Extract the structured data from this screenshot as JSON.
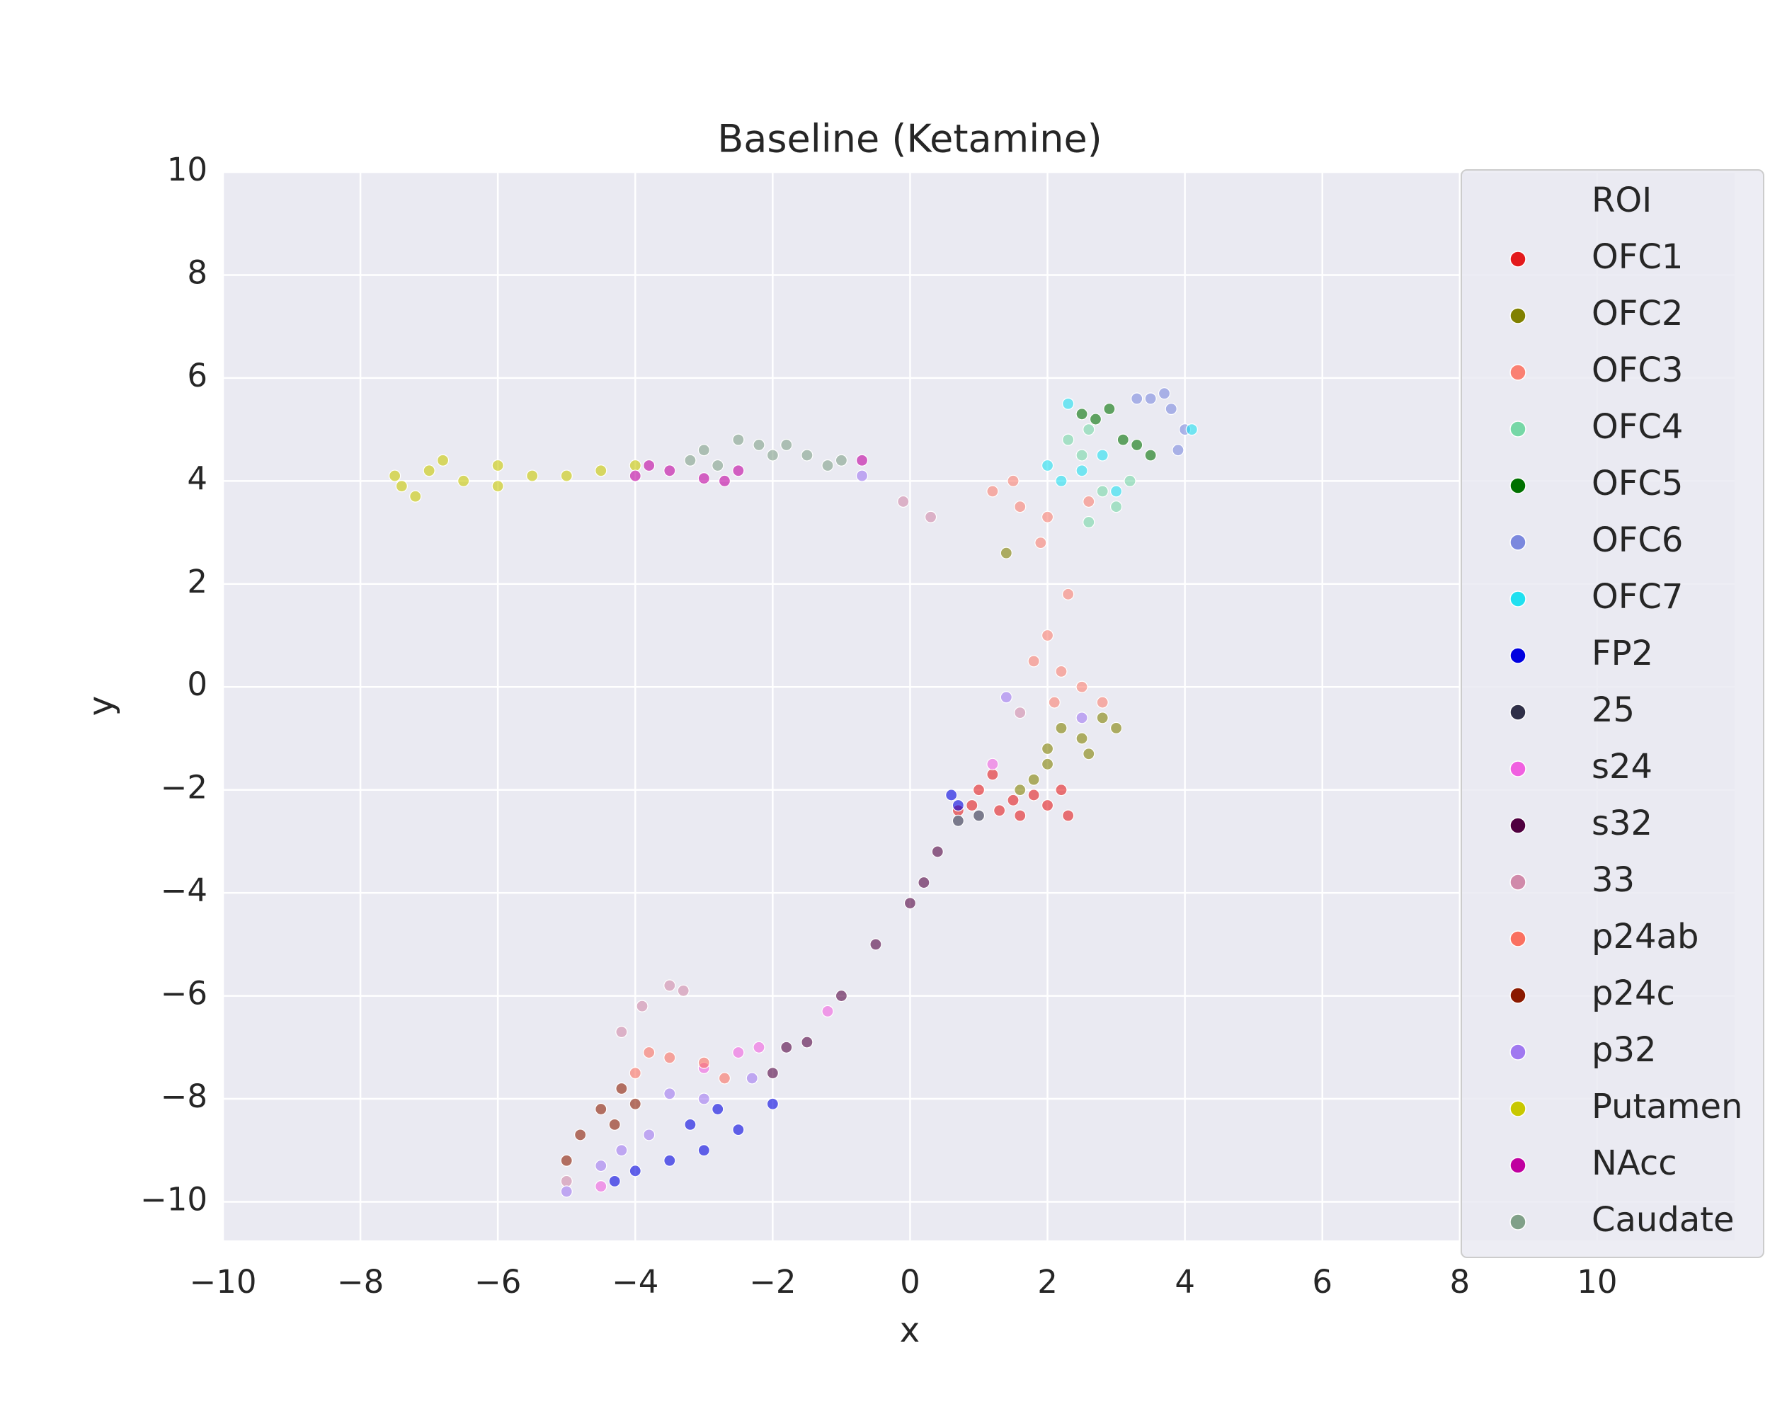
{
  "chart_data": {
    "type": "scatter",
    "title": "Baseline (Ketamine)",
    "x_label": "x",
    "y_label": "y",
    "legend_title": "ROI",
    "legend_position": "right",
    "grid": true,
    "xlim": [
      -10,
      12
    ],
    "ylim": [
      -10.75,
      10
    ],
    "xticks": [
      {
        "value": -10,
        "label": "−10"
      },
      {
        "value": -8,
        "label": "−8"
      },
      {
        "value": -6,
        "label": "−6"
      },
      {
        "value": -4,
        "label": "−4"
      },
      {
        "value": -2,
        "label": "−2"
      },
      0,
      2,
      4,
      6,
      8,
      10
    ],
    "yticks": [
      {
        "value": -10,
        "label": "−10"
      },
      {
        "value": -8,
        "label": "−8"
      },
      {
        "value": -6,
        "label": "−6"
      },
      {
        "value": -4,
        "label": "−4"
      },
      {
        "value": -2,
        "label": "−2"
      },
      0,
      2,
      4,
      6,
      8,
      10
    ],
    "series": [
      {
        "name": "OFC1",
        "color": "#e31a1c",
        "x": [
          1.5,
          2,
          1,
          2.3,
          1.8,
          1.2,
          0.9,
          2.2,
          1.6,
          1.3,
          0.7
        ],
        "y": [
          -2.2,
          -2.3,
          -2,
          -2.5,
          -2.1,
          -1.7,
          -2.3,
          -2,
          -2.5,
          -2.4,
          -2.4
        ]
      },
      {
        "name": "OFC2",
        "color": "#808000",
        "x": [
          2,
          2.5,
          1.8,
          2.8,
          2.2,
          1.6,
          2.6,
          2,
          3,
          1.4
        ],
        "y": [
          -1.5,
          -1,
          -1.8,
          -0.6,
          -0.8,
          -2,
          -1.3,
          -1.2,
          -0.8,
          2.6
        ]
      },
      {
        "name": "OFC3",
        "color": "#fa8072",
        "x": [
          2,
          2.2,
          1.9,
          2,
          1.5,
          1.2,
          2.5,
          2.8,
          2.3,
          1.8,
          2.1,
          1.6,
          2.6
        ],
        "y": [
          1,
          0.3,
          2.8,
          3.3,
          4,
          3.8,
          0,
          -0.3,
          1.8,
          0.5,
          -0.3,
          3.5,
          3.6
        ]
      },
      {
        "name": "OFC4",
        "color": "#76d7a6",
        "x": [
          2.5,
          2.8,
          2.6,
          3,
          2.3,
          3.2,
          2.6
        ],
        "y": [
          4.5,
          3.8,
          5,
          3.5,
          4.8,
          4,
          3.2
        ]
      },
      {
        "name": "OFC5",
        "color": "#007000",
        "x": [
          2.5,
          2.9,
          3.3,
          3.5,
          2.7,
          3.1
        ],
        "y": [
          5.3,
          5.4,
          4.7,
          4.5,
          5.2,
          4.8
        ]
      },
      {
        "name": "OFC6",
        "color": "#7b88de",
        "x": [
          3.5,
          3.8,
          4,
          3.7,
          3.3,
          3.9
        ],
        "y": [
          5.6,
          5.4,
          5,
          5.7,
          5.6,
          4.6
        ]
      },
      {
        "name": "OFC7",
        "color": "#20e0f0",
        "x": [
          2.5,
          2,
          3,
          2.3,
          4.1,
          2.2,
          2.8
        ],
        "y": [
          4.2,
          4.3,
          3.8,
          5.5,
          5,
          4,
          4.5
        ]
      },
      {
        "name": "FP2",
        "color": "#0000e0",
        "x": [
          -4,
          -3,
          -2.5,
          -2,
          -3.5,
          -3.2,
          -2.8,
          -4.3,
          0.7,
          0.6
        ],
        "y": [
          -9.4,
          -9,
          -8.6,
          -8.1,
          -9.2,
          -8.5,
          -8.2,
          -9.6,
          -2.3,
          -2.1
        ]
      },
      {
        "name": "25",
        "color": "#2f2f48",
        "x": [
          0.7,
          1
        ],
        "y": [
          -2.6,
          -2.5
        ]
      },
      {
        "name": "s24",
        "color": "#f060e0",
        "x": [
          -3,
          -2.5,
          -2.2,
          -1.2,
          -4.5,
          1.2
        ],
        "y": [
          -7.4,
          -7.1,
          -7,
          -6.3,
          -9.7,
          -1.5
        ]
      },
      {
        "name": "s32",
        "color": "#500040",
        "x": [
          -2,
          -1.5,
          -1,
          -0.5,
          0.2,
          0,
          0.4,
          -1.8
        ],
        "y": [
          -7.5,
          -6.9,
          -6,
          -5,
          -3.8,
          -4.2,
          -3.2,
          -7
        ]
      },
      {
        "name": "33",
        "color": "#d08aaa",
        "x": [
          -3.5,
          -3.9,
          -3.3,
          -4.2,
          1.6,
          -0.1,
          0.3,
          -5
        ],
        "y": [
          -5.8,
          -6.2,
          -5.9,
          -6.7,
          -0.5,
          3.6,
          3.3,
          -9.6
        ]
      },
      {
        "name": "p24ab",
        "color": "#fa7060",
        "x": [
          -3.5,
          -3,
          -4,
          -2.7,
          -3.8
        ],
        "y": [
          -7.2,
          -7.3,
          -7.5,
          -7.6,
          -7.1
        ]
      },
      {
        "name": "p24c",
        "color": "#8b1a00",
        "x": [
          -4.5,
          -4.2,
          -4.8,
          -4.3,
          -5,
          -4
        ],
        "y": [
          -8.2,
          -7.8,
          -8.7,
          -8.5,
          -9.2,
          -8.1
        ]
      },
      {
        "name": "p32",
        "color": "#a078f0",
        "x": [
          -4.5,
          -3.8,
          -3,
          -2.3,
          -5,
          -4.2,
          -3.5,
          1.4,
          -0.7,
          2.5
        ],
        "y": [
          -9.3,
          -8.7,
          -8,
          -7.6,
          -9.8,
          -9,
          -7.9,
          -0.2,
          4.1,
          -0.6
        ]
      },
      {
        "name": "Putamen",
        "color": "#c8c800",
        "x": [
          -7.5,
          -7,
          -6.5,
          -6,
          -5.5,
          -5,
          -4.5,
          -7.2,
          -6.8,
          -6,
          -4,
          -7.4
        ],
        "y": [
          4.1,
          4.2,
          4,
          3.9,
          4.1,
          4.1,
          4.2,
          3.7,
          4.4,
          4.3,
          4.3,
          3.9
        ]
      },
      {
        "name": "NAcc",
        "color": "#c000a0",
        "x": [
          -4,
          -3.5,
          -3,
          -2.5,
          -3.8,
          -2.7,
          -0.7
        ],
        "y": [
          4.1,
          4.2,
          4.05,
          4.2,
          4.3,
          4,
          4.4
        ]
      },
      {
        "name": "Caudate",
        "color": "#80a088",
        "x": [
          -3,
          -2.5,
          -2,
          -1.5,
          -1,
          -2.8,
          -2.2,
          -1.8,
          -3.2,
          -1.2
        ],
        "y": [
          4.6,
          4.8,
          4.5,
          4.5,
          4.4,
          4.3,
          4.7,
          4.7,
          4.4,
          4.3
        ]
      }
    ]
  }
}
